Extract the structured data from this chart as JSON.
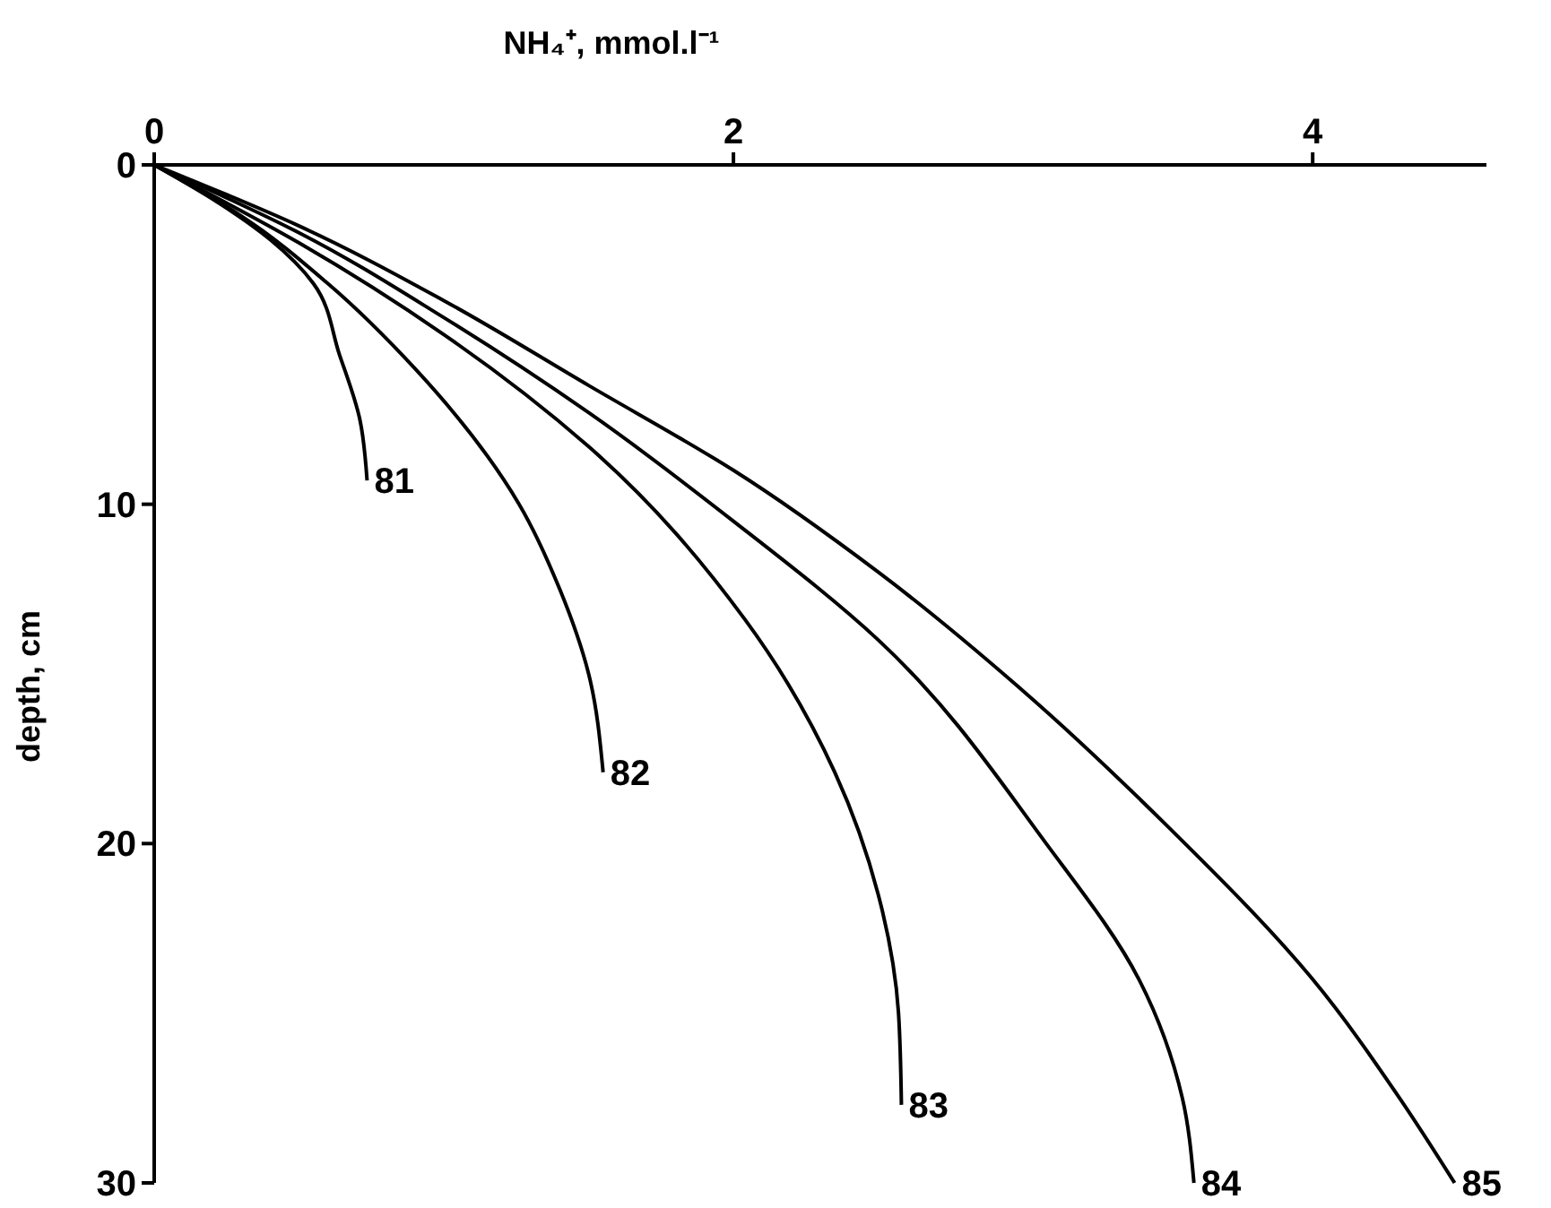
{
  "chart_data": {
    "type": "line",
    "xlabel": "NH₄⁺, mmol.l⁻¹",
    "ylabel": "depth, cm",
    "xlim": [
      0,
      4.6
    ],
    "xticks": [
      0,
      2,
      4
    ],
    "ylim": [
      30,
      0
    ],
    "yticks": [
      0,
      10,
      20,
      30
    ],
    "grid": false,
    "legend": false,
    "marker": "none",
    "line_style": "solid",
    "series": [
      {
        "name": "81",
        "color": "#000000",
        "x": [
          0,
          0.2,
          0.4,
          0.55,
          0.64,
          0.71,
          0.735
        ],
        "values": [
          0,
          1,
          2.2,
          3.5,
          5.6,
          7.5,
          9.3
        ]
      },
      {
        "name": "82",
        "color": "#000000",
        "x": [
          0,
          0.3,
          0.6,
          0.9,
          1.26,
          1.4,
          1.5,
          1.55
        ],
        "values": [
          0,
          1.5,
          3.5,
          6,
          10,
          12.5,
          15,
          17.9
        ]
      },
      {
        "name": "83",
        "color": "#000000",
        "x": [
          0,
          0.5,
          1,
          1.5,
          2.04,
          2.35,
          2.5,
          2.57,
          2.58
        ],
        "values": [
          0,
          2.3,
          5,
          8.3,
          13.4,
          17.9,
          21.5,
          25,
          27.7
        ]
      },
      {
        "name": "84",
        "color": "#000000",
        "x": [
          0,
          0.5,
          1,
          1.5,
          2,
          2.5,
          3.08,
          3.4,
          3.55,
          3.59
        ],
        "values": [
          0,
          2,
          4.5,
          7.3,
          10.5,
          14,
          20,
          24,
          27.5,
          30
        ]
      },
      {
        "name": "85",
        "color": "#000000",
        "x": [
          0,
          0.5,
          1,
          1.5,
          2,
          2.5,
          3,
          3.5,
          4,
          4.3,
          4.49
        ],
        "values": [
          0,
          1.8,
          4,
          6.5,
          9,
          12,
          15.5,
          19.5,
          24,
          27.5,
          30
        ]
      }
    ]
  }
}
